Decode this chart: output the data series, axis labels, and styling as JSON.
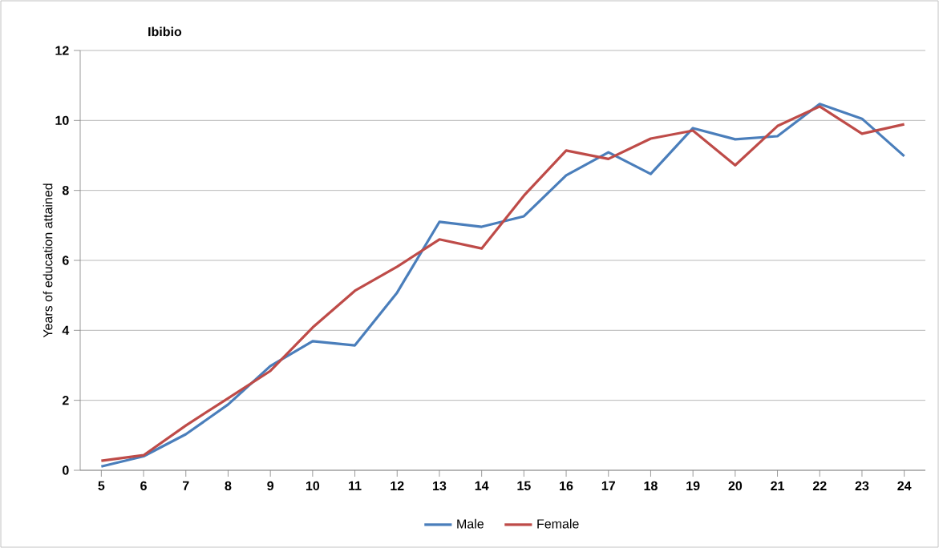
{
  "chart_data": {
    "type": "line",
    "title": "Ibibio",
    "ylabel": "Years of education attained",
    "categories": [
      "5",
      "6",
      "7",
      "8",
      "9",
      "10",
      "11",
      "12",
      "13",
      "14",
      "15",
      "16",
      "17",
      "18",
      "19",
      "20",
      "21",
      "22",
      "23",
      "24"
    ],
    "series": [
      {
        "name": "Male",
        "color": "#4a7ebb",
        "values": [
          0.11,
          0.4,
          1.03,
          1.88,
          2.98,
          3.69,
          3.57,
          5.08,
          7.1,
          6.96,
          7.26,
          8.43,
          9.09,
          8.47,
          9.78,
          9.46,
          9.55,
          10.47,
          10.05,
          8.98
        ]
      },
      {
        "name": "Female",
        "color": "#be4b48",
        "values": [
          0.27,
          0.43,
          1.28,
          2.06,
          2.84,
          4.08,
          5.13,
          5.82,
          6.6,
          6.34,
          7.85,
          9.14,
          8.9,
          9.48,
          9.71,
          8.72,
          9.84,
          10.4,
          9.62,
          9.89
        ]
      }
    ],
    "ylim": [
      0,
      12
    ],
    "yticks": [
      0,
      2,
      4,
      6,
      8,
      10,
      12
    ],
    "grid": "y",
    "legend": "bottom",
    "marker": "none",
    "line_style": "solid"
  }
}
